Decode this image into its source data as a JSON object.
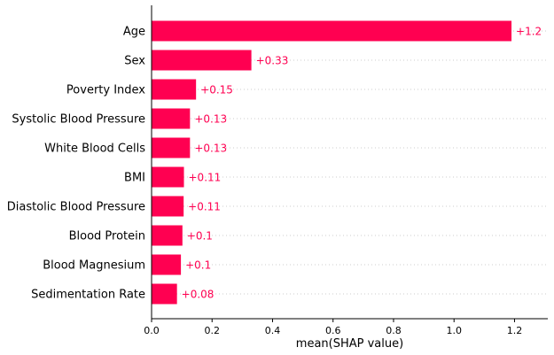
{
  "chart_data": {
    "type": "bar",
    "orientation": "horizontal",
    "title": "",
    "xlabel": "mean(SHAP value)",
    "ylabel": "",
    "xlim": [
      0,
      1.31
    ],
    "x_ticks": [
      0.0,
      0.2,
      0.4,
      0.6,
      0.8,
      1.0,
      1.2
    ],
    "x_tick_labels": [
      "0.0",
      "0.2",
      "0.4",
      "0.6",
      "0.8",
      "1.0",
      "1.2"
    ],
    "grid": "dotted horizontal row guides",
    "bar_color": "#ff0051",
    "categories": [
      "Age",
      "Sex",
      "Poverty Index",
      "Systolic Blood Pressure",
      "White Blood Cells",
      "BMI",
      "Diastolic Blood Pressure",
      "Blood Protein",
      "Blood Magnesium",
      "Sedimentation Rate"
    ],
    "values": [
      1.19,
      0.33,
      0.147,
      0.127,
      0.127,
      0.107,
      0.106,
      0.102,
      0.097,
      0.084
    ],
    "data_labels": [
      "+1.2",
      "+0.33",
      "+0.15",
      "+0.13",
      "+0.13",
      "+0.11",
      "+0.11",
      "+0.1",
      "+0.1",
      "+0.08"
    ]
  }
}
